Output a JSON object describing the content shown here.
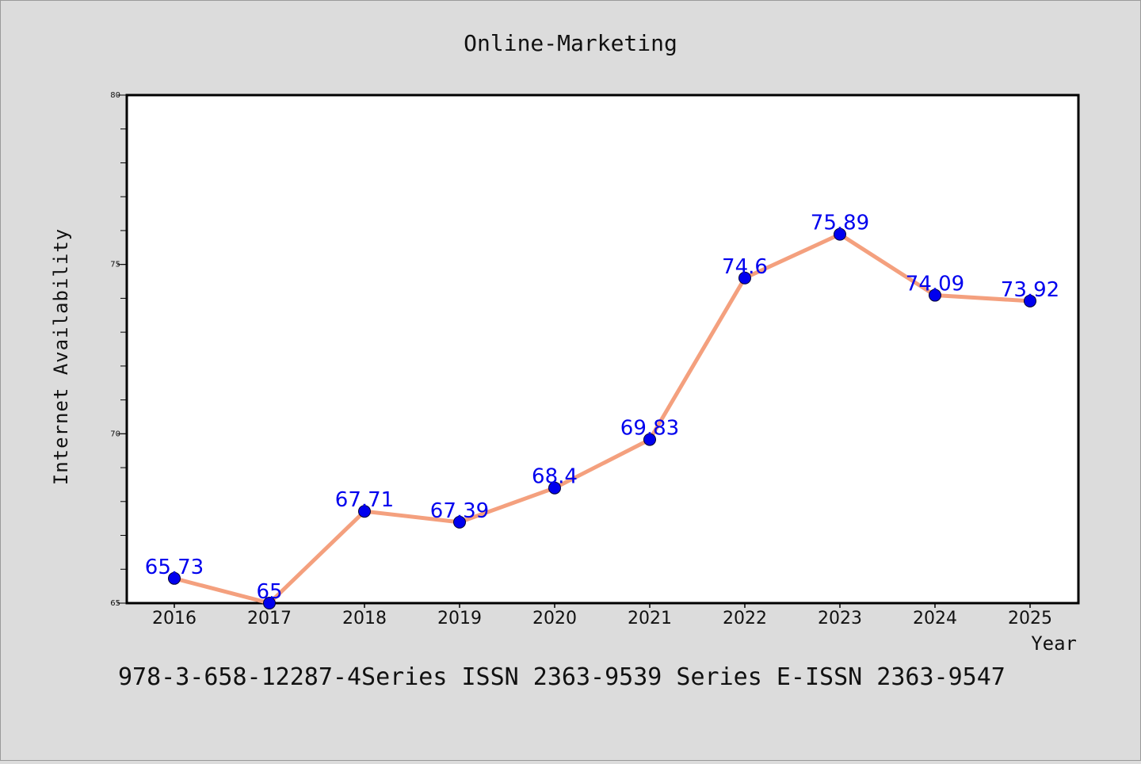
{
  "chart_data": {
    "type": "line",
    "title": "Online-Marketing",
    "xlabel": "Year",
    "ylabel": "Internet Availability",
    "categories": [
      "2016",
      "2017",
      "2018",
      "2019",
      "2020",
      "2021",
      "2022",
      "2023",
      "2024",
      "2025"
    ],
    "values": [
      65.73,
      65,
      67.71,
      67.39,
      68.4,
      69.83,
      74.6,
      75.89,
      74.09,
      73.92
    ],
    "value_labels": [
      "65.73",
      "65",
      "67.71",
      "67.39",
      "68.4",
      "69.83",
      "74.6",
      "75.89",
      "74.09",
      "73.92"
    ],
    "ylim": [
      65,
      80
    ],
    "y_major_ticks": [
      65,
      70,
      75,
      80
    ],
    "y_major_tick_labels": [
      "65",
      "70",
      "75",
      "80"
    ],
    "y_minor_tick_step": 1,
    "grid": false,
    "legend": "none",
    "colors": {
      "line": "#f4a07e",
      "marker": "#0000ee",
      "data_label": "#0000ee",
      "plot_background": "#ffffff",
      "page_background": "#dcdcdc"
    }
  },
  "footer_text": "978-3-658-12287-4Series ISSN 2363-9539 Series E-ISSN 2363-9547"
}
